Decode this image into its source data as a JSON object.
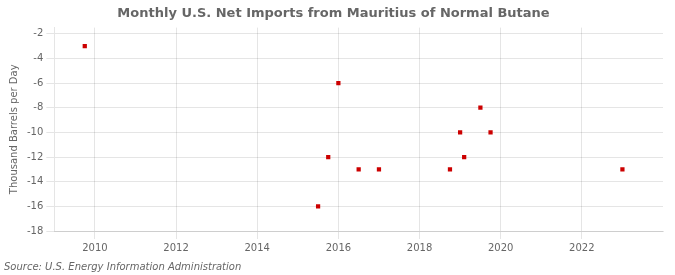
{
  "chart_data": {
    "type": "scatter",
    "title": "Monthly U.S. Net Imports from Mauritius of Normal Butane",
    "ylabel": "Thousand Barrels per Day",
    "source": "Source: U.S. Energy Information Administration",
    "x": [
      2009.75,
      2015.5,
      2015.75,
      2016.0,
      2016.5,
      2017.0,
      2018.75,
      2019.0,
      2019.1,
      2019.5,
      2019.75,
      2023.0
    ],
    "values": [
      -3,
      -16,
      -12,
      -6,
      -13,
      -13,
      -13,
      -10,
      -12,
      -8,
      -10,
      -13
    ],
    "color": "#cc0000",
    "marker": "square",
    "xlim": [
      2009.0,
      2024.0
    ],
    "ylim": [
      -18,
      -1.5
    ],
    "xticks": [
      2010,
      2012,
      2014,
      2016,
      2018,
      2020,
      2022
    ],
    "yticks": [
      -18,
      -16,
      -14,
      -12,
      -10,
      -8,
      -6,
      -4,
      -2
    ],
    "grid": true
  }
}
